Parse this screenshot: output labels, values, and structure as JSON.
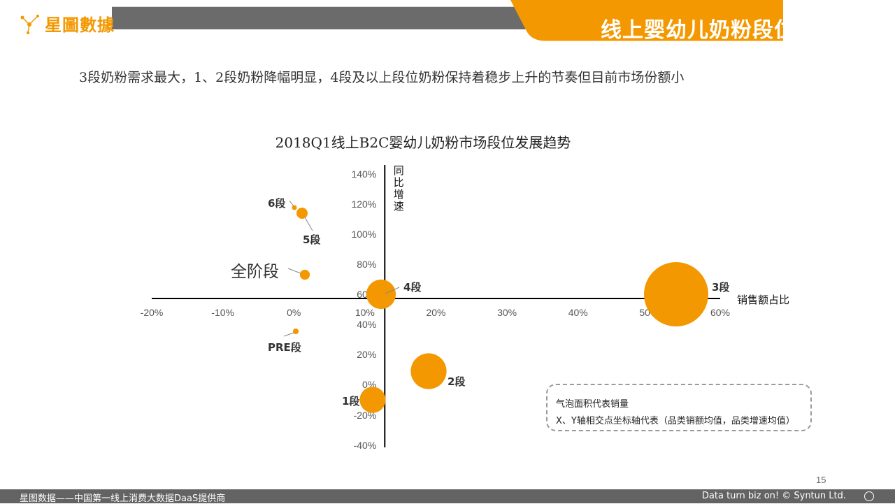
{
  "header": {
    "logo_text": "星圖數據",
    "title": "线上婴幼儿奶粉段位发展趋势",
    "bar_color": "#6b6b6b",
    "accent": "#f39800"
  },
  "subtitle": "3段奶粉需求最大，1、2段奶粉降幅明显，4段及以上段位奶粉保持着稳步上升的节奏但目前市场份额小",
  "chart_data": {
    "type": "bubble",
    "title": "2018Q1线上B2C婴幼儿奶粉市场段位发展趋势",
    "xlabel": "销售额占比",
    "ylabel": "同比增速",
    "x_ticks": [
      "-20%",
      "-10%",
      "0%",
      "10%",
      "20%",
      "30%",
      "40%",
      "50%",
      "60%"
    ],
    "y_ticks_upper": [
      "140%",
      "120%",
      "100%",
      "80%",
      "60%"
    ],
    "y_ticks_lower": [
      "40%",
      "20%",
      "0%",
      "-20%",
      "-40%"
    ],
    "xlim": [
      -20,
      60
    ],
    "ylim": [
      -40,
      140
    ],
    "axis_cross": {
      "x": 12.5,
      "y": 62
    },
    "color": "#f39800",
    "points": [
      {
        "label": "6段",
        "x": 0.3,
        "y": 120,
        "size": 0.02
      },
      {
        "label": "5段",
        "x": 1.2,
        "y": 114,
        "size": 0.15
      },
      {
        "label": "全阶段",
        "x": 1.6,
        "y": 72,
        "size": 0.12
      },
      {
        "label": "PRE段",
        "x": 0.3,
        "y": 35,
        "size": 0.04
      },
      {
        "label": "4段",
        "x": 12.5,
        "y": 61,
        "size": 1.05
      },
      {
        "label": "3段",
        "x": 53.5,
        "y": 61,
        "size": 5.0
      },
      {
        "label": "2段",
        "x": 19.2,
        "y": 10,
        "size": 1.55
      },
      {
        "label": "1段",
        "x": 11.6,
        "y": -10,
        "size": 0.82
      }
    ]
  },
  "legend": {
    "line1": "气泡面积代表销量",
    "line2": "X、Y轴相交点坐标轴代表（品类销额均值，品类增速均值）"
  },
  "page_number": "15",
  "footer": {
    "left": "星图数据——中国第一线上消费大数据DaaS提供商",
    "right": "Data turn biz on! © Syntun Ltd."
  }
}
